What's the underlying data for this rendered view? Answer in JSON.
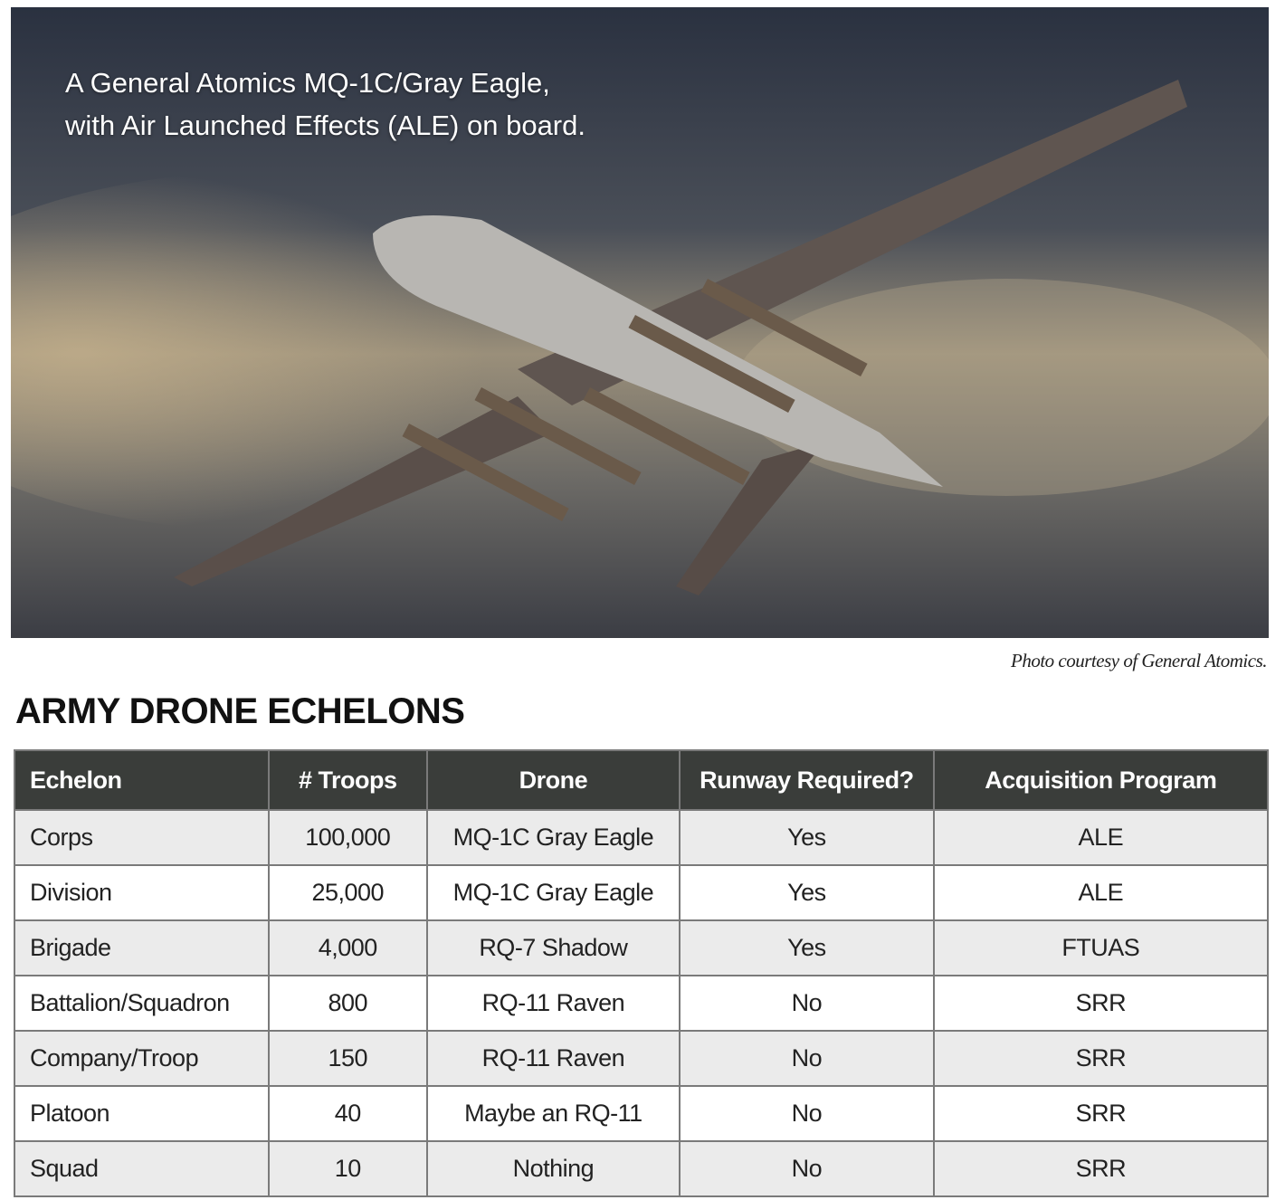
{
  "photo": {
    "caption_line1": "A General Atomics MQ-1C/Gray Eagle,",
    "caption_line2": "with Air Launched Effects (ALE) on board.",
    "credit": "Photo courtesy of General Atomics."
  },
  "title": "ARMY DRONE ECHELONS",
  "table": {
    "headers": [
      "Echelon",
      "# Troops",
      "Drone",
      "Runway Required?",
      "Acquisition Program"
    ],
    "rows": [
      [
        "Corps",
        "100,000",
        "MQ-1C Gray Eagle",
        "Yes",
        "ALE"
      ],
      [
        "Division",
        "25,000",
        "MQ-1C Gray Eagle",
        "Yes",
        "ALE"
      ],
      [
        "Brigade",
        "4,000",
        "RQ-7 Shadow",
        "Yes",
        "FTUAS"
      ],
      [
        "Battalion/Squadron",
        "800",
        "RQ-11 Raven",
        "No",
        "SRR"
      ],
      [
        "Company/Troop",
        "150",
        "RQ-11 Raven",
        "No",
        "SRR"
      ],
      [
        "Platoon",
        "40",
        "Maybe an RQ-11",
        "No",
        "SRR"
      ],
      [
        "Squad",
        "10",
        "Nothing",
        "No",
        "SRR"
      ]
    ]
  }
}
